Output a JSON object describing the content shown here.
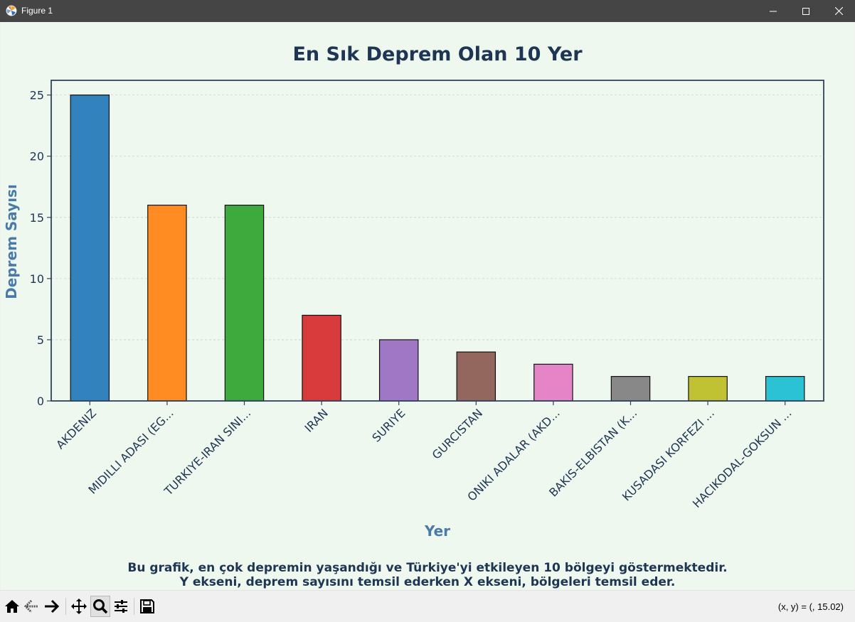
{
  "window": {
    "title": "Figure 1",
    "app_icon": "matplotlib-icon",
    "controls": [
      "minimize-icon",
      "maximize-icon",
      "close-icon"
    ]
  },
  "chart_data": {
    "type": "bar",
    "title": "En Sık Deprem Olan 10 Yer",
    "xlabel": "Yer",
    "ylabel": "Deprem Sayısı",
    "categories": [
      "AKDENIZ",
      "MIDILLI ADASI (EG...",
      "TURKIYE-IRAN SINI...",
      "IRAN",
      "SURIYE",
      "GURCISTAN",
      "ONIKI ADALAR (AKD...",
      "BAKIS-ELBISTAN (K...",
      "KUSADASI KORFEZI ...",
      "HACIKODAL-GOKSUN ..."
    ],
    "values": [
      25,
      16,
      16,
      7,
      5,
      4,
      3,
      2,
      2,
      2
    ],
    "colors": [
      "#3182bd",
      "#ff8c22",
      "#3eaa3e",
      "#d93b3c",
      "#a077c4",
      "#93675d",
      "#e585c8",
      "#888888",
      "#c1c233",
      "#2bc3d4"
    ],
    "ylim": [
      0,
      26.2
    ],
    "yticks": [
      0,
      5,
      10,
      15,
      20,
      25
    ],
    "grid": "y",
    "legend": "none"
  },
  "caption": {
    "line1": "Bu grafik, en çok depremin yaşandığı ve Türkiye'yi etkileyen 10 bölgeyi göstermektedir.",
    "line2": "Y ekseni, deprem sayısını temsil ederken X ekseni, bölgeleri temsil eder."
  },
  "toolbar": {
    "buttons": [
      "home-icon",
      "back-icon",
      "forward-icon",
      "pan-icon",
      "zoom-icon",
      "configure-subplots-icon",
      "save-icon"
    ],
    "active": "zoom-icon",
    "coords": "(x, y) = (, 15.02)"
  },
  "colors": {
    "figure_bg": "#eff8ef",
    "title": "#1e3553",
    "axis_label": "#4a7ba7",
    "spine": "#2f4160"
  }
}
